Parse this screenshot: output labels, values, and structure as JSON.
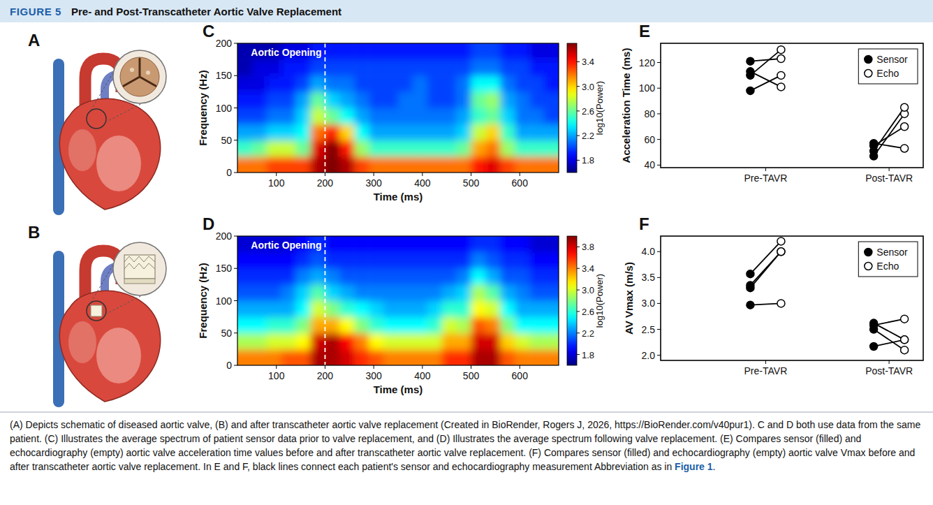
{
  "header": {
    "label": "FIGURE 5",
    "title": "Pre- and Post-Transcatheter Aortic Valve Replacement"
  },
  "panel_labels": [
    "A",
    "B"
  ],
  "caption": {
    "text": "(A) Depicts schematic of diseased aortic valve, (B) and after transcatheter aortic valve replacement (Created in BioRender, Rogers J, 2026, https://BioRender.com/v40pur1). C and D both use data from the same patient. (C) Illustrates the average spectrum of patient sensor data prior to valve replacement, and (D) Illustrates the average spectrum following valve replacement. (E) Compares sensor (filled) and echocardiography (empty) aortic valve acceleration time values before and after transcatheter aortic valve replacement. (F) Compares sensor (filled) and echocardiography (empty) aortic valve Vmax before and after transcatheter aortic valve replacement. In E and F, black lines connect each patient's sensor and echocardiography measurement Abbreviation as in",
    "link": "Figure 1",
    "end": "."
  },
  "chart_data": [
    {
      "panel": "C",
      "type": "heatmap",
      "xlabel": "Time (ms)",
      "ylabel": "Frequency (Hz)",
      "xlim": [
        20,
        680
      ],
      "xticks": [
        100,
        200,
        300,
        400,
        500,
        600
      ],
      "ylim": [
        0,
        200
      ],
      "yticks": [
        0,
        50,
        100,
        150,
        200
      ],
      "cells": [
        [
          3.2,
          3.2,
          3.3,
          3.3,
          3.3,
          3.6,
          3.7,
          3.6,
          3.3,
          3.2,
          3.2,
          3.2,
          3.2,
          3.2,
          3.2,
          3.2,
          3.4,
          3.5,
          3.3,
          3.2,
          3.2,
          3.2
        ],
        [
          2.5,
          2.6,
          2.8,
          2.8,
          2.6,
          3.5,
          3.7,
          3.4,
          2.7,
          2.5,
          2.5,
          2.5,
          2.5,
          2.5,
          2.5,
          2.6,
          3.1,
          3.2,
          2.7,
          2.5,
          2.5,
          2.5
        ],
        [
          2.2,
          2.2,
          2.3,
          2.3,
          2.4,
          3.2,
          3.4,
          3.0,
          2.4,
          2.2,
          2.2,
          2.2,
          2.2,
          2.2,
          2.2,
          2.3,
          2.8,
          3.0,
          2.5,
          2.2,
          2.2,
          2.2
        ],
        [
          2.0,
          2.0,
          2.1,
          2.1,
          2.3,
          2.8,
          2.6,
          2.4,
          2.2,
          2.1,
          2.1,
          2.1,
          2.1,
          2.1,
          2.1,
          2.2,
          2.5,
          2.6,
          2.3,
          2.1,
          2.1,
          2.0
        ],
        [
          1.9,
          1.9,
          2.0,
          2.0,
          2.2,
          2.6,
          2.3,
          2.2,
          2.1,
          2.0,
          2.0,
          2.1,
          2.1,
          2.0,
          2.0,
          2.1,
          2.6,
          2.7,
          2.2,
          2.1,
          2.0,
          2.0
        ],
        [
          1.8,
          1.8,
          1.9,
          1.9,
          2.0,
          2.2,
          2.1,
          2.1,
          2.0,
          2.0,
          2.0,
          2.0,
          2.1,
          2.0,
          2.0,
          2.1,
          2.4,
          2.4,
          2.1,
          2.0,
          2.0,
          1.9
        ],
        [
          1.7,
          1.8,
          1.8,
          1.9,
          1.9,
          2.0,
          2.0,
          2.0,
          2.0,
          2.0,
          2.0,
          2.0,
          2.0,
          2.0,
          2.0,
          2.0,
          2.1,
          2.1,
          2.0,
          2.0,
          1.9,
          1.9
        ],
        [
          1.7,
          1.7,
          1.7,
          1.8,
          1.8,
          1.9,
          1.9,
          1.9,
          1.9,
          1.9,
          1.9,
          1.9,
          1.9,
          1.9,
          1.9,
          1.9,
          2.0,
          2.0,
          1.9,
          1.9,
          1.8,
          1.8
        ]
      ],
      "colorbar": {
        "label": "log10(Power)",
        "range": [
          1.6,
          3.7
        ],
        "ticks": [
          1.8,
          2.2,
          2.6,
          {
            "value": 3.0,
            "label": "3.0"
          },
          3.4
        ]
      },
      "annotation": {
        "text": "Aortic Opening",
        "x": 200
      }
    },
    {
      "panel": "D",
      "type": "heatmap",
      "xlabel": "Time (ms)",
      "ylabel": "Frequency (Hz)",
      "xlim": [
        20,
        680
      ],
      "xticks": [
        100,
        200,
        300,
        400,
        500,
        600
      ],
      "ylim": [
        0,
        200
      ],
      "yticks": [
        0,
        50,
        100,
        150,
        200
      ],
      "cells": [
        [
          3.4,
          3.4,
          3.4,
          3.5,
          3.5,
          3.9,
          3.9,
          3.8,
          3.6,
          3.5,
          3.4,
          3.4,
          3.4,
          3.4,
          3.6,
          3.6,
          3.9,
          3.9,
          3.5,
          3.4,
          3.4,
          3.4
        ],
        [
          2.9,
          2.9,
          3.0,
          3.0,
          3.1,
          3.8,
          3.9,
          3.7,
          3.4,
          3.1,
          3.0,
          3.0,
          3.0,
          3.0,
          3.3,
          3.3,
          3.8,
          3.8,
          3.2,
          3.0,
          2.9,
          2.9
        ],
        [
          2.5,
          2.5,
          2.6,
          2.6,
          2.8,
          3.3,
          3.3,
          3.1,
          2.8,
          2.6,
          2.5,
          2.5,
          2.5,
          2.6,
          3.0,
          2.9,
          3.5,
          3.4,
          2.8,
          2.5,
          2.5,
          2.5
        ],
        [
          2.3,
          2.3,
          2.3,
          2.3,
          2.5,
          3.0,
          2.8,
          2.6,
          2.5,
          2.4,
          2.3,
          2.3,
          2.3,
          2.4,
          2.6,
          2.6,
          3.1,
          3.0,
          2.5,
          2.3,
          2.3,
          2.3
        ],
        [
          2.1,
          2.1,
          2.1,
          2.2,
          2.4,
          2.7,
          2.4,
          2.3,
          2.2,
          2.2,
          2.2,
          2.2,
          2.2,
          2.2,
          2.3,
          2.4,
          2.9,
          2.7,
          2.3,
          2.2,
          2.1,
          2.1
        ],
        [
          2.0,
          2.0,
          2.0,
          2.0,
          2.2,
          2.3,
          2.2,
          2.1,
          2.1,
          2.1,
          2.1,
          2.1,
          2.1,
          2.1,
          2.1,
          2.2,
          2.5,
          2.3,
          2.1,
          2.1,
          2.0,
          2.0
        ],
        [
          1.9,
          1.9,
          1.9,
          1.9,
          2.0,
          2.1,
          2.0,
          2.0,
          2.0,
          2.0,
          2.0,
          2.0,
          2.0,
          2.0,
          2.0,
          2.0,
          2.2,
          2.1,
          2.0,
          2.0,
          1.9,
          1.9
        ],
        [
          1.8,
          1.8,
          1.8,
          1.8,
          1.9,
          2.0,
          1.9,
          1.9,
          1.9,
          1.9,
          1.9,
          1.9,
          1.9,
          1.9,
          1.9,
          1.9,
          2.0,
          2.0,
          1.9,
          1.9,
          1.8,
          1.8
        ]
      ],
      "colorbar": {
        "label": "log10(Power)",
        "range": [
          1.6,
          4.0
        ],
        "ticks": [
          1.8,
          2.2,
          2.6,
          {
            "value": 3.0,
            "label": "3.0"
          },
          3.4,
          3.8
        ]
      },
      "annotation": {
        "text": "Aortic Opening",
        "x": 200
      }
    },
    {
      "panel": "E",
      "type": "scatter",
      "ylabel": "Acceleration Time (ms)",
      "categories": [
        "Pre-TAVR",
        "Post-TAVR"
      ],
      "ylim": [
        38,
        135
      ],
      "yticks": [
        40,
        60,
        80,
        100,
        120
      ],
      "legend": "upper right",
      "series": [
        {
          "name": "Sensor",
          "marker": "filled",
          "color": "#000000",
          "values": [
            [
              98,
              110,
              113,
              121
            ],
            [
              47,
              51,
              55,
              57
            ]
          ]
        },
        {
          "name": "Echo",
          "marker": "empty",
          "color": "#000000",
          "values": [
            [
              110,
              130,
              101,
              123
            ],
            [
              80,
              85,
              70,
              53
            ]
          ]
        }
      ]
    },
    {
      "panel": "F",
      "type": "scatter",
      "ylabel": "AV Vmax (m/s)",
      "categories": [
        "Pre-TAVR",
        "Post-TAVR"
      ],
      "ylim": [
        1.9,
        4.3
      ],
      "yticks": [
        {
          "value": 2.0,
          "label": "2.0"
        },
        2.5,
        {
          "value": 3.0,
          "label": "3.0"
        },
        3.5,
        {
          "value": 4.0,
          "label": "4.0"
        }
      ],
      "legend": "upper right",
      "series": [
        {
          "name": "Sensor",
          "marker": "filled",
          "color": "#000000",
          "values": [
            [
              3.57,
              3.35,
              3.3,
              2.97
            ],
            [
              2.62,
              2.58,
              2.5,
              2.17
            ]
          ]
        },
        {
          "name": "Echo",
          "marker": "empty",
          "color": "#000000",
          "values": [
            [
              4.2,
              4.0,
              4.0,
              3.0
            ],
            [
              2.3,
              2.7,
              2.1,
              2.3
            ]
          ]
        }
      ]
    }
  ]
}
